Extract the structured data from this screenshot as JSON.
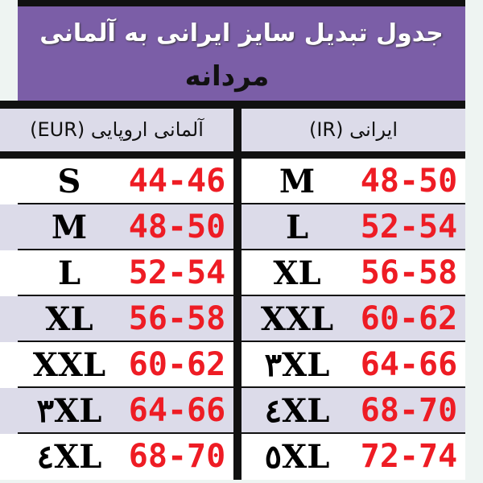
{
  "title": "جدول تبدیل سایز ایرانی به آلمانی",
  "subtitle": "مردانه",
  "headers": {
    "eur": "آلمانی اروپایی (EUR)",
    "ir": "ایرانی (IR)"
  },
  "colors": {
    "banner": "#7b5ea7",
    "numbers": "#ee1c24",
    "row_alt": "#dcdbe9"
  },
  "rows": [
    {
      "eur_size": "S",
      "eur_range": "44-46",
      "ir_size": "M",
      "ir_range": "48-50"
    },
    {
      "eur_size": "M",
      "eur_range": "48-50",
      "ir_size": "L",
      "ir_range": "52-54"
    },
    {
      "eur_size": "L",
      "eur_range": "52-54",
      "ir_size": "XL",
      "ir_range": "56-58"
    },
    {
      "eur_size": "XL",
      "eur_range": "56-58",
      "ir_size": "XXL",
      "ir_range": "60-62"
    },
    {
      "eur_size": "XXL",
      "eur_range": "60-62",
      "ir_size": "۳XL",
      "ir_range": "64-66"
    },
    {
      "eur_size": "۳XL",
      "eur_range": "64-66",
      "ir_size": "٤XL",
      "ir_range": "68-70"
    },
    {
      "eur_size": "٤XL",
      "eur_range": "68-70",
      "ir_size": "٥XL",
      "ir_range": "72-74"
    }
  ]
}
